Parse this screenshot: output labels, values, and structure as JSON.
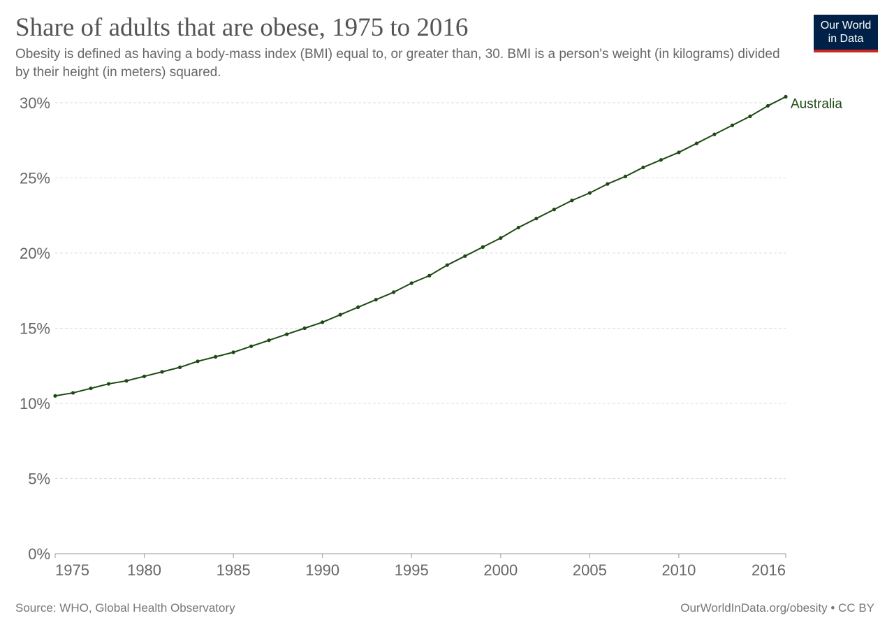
{
  "header": {
    "title": "Share of adults that are obese, 1975 to 2016",
    "subtitle": "Obesity is defined as having a body-mass index (BMI) equal to, or greater than, 30. BMI is a person's weight (in kilograms) divided by their height (in meters) squared."
  },
  "logo": {
    "line1": "Our World",
    "line2": "in Data",
    "background_color": "#002147",
    "accent_color": "#ce261e"
  },
  "footer": {
    "source": "Source: WHO, Global Health Observatory",
    "link": "OurWorldInData.org/obesity • CC BY"
  },
  "chart_data": {
    "type": "line",
    "title": "Share of adults that are obese, 1975 to 2016",
    "xlabel": "",
    "ylabel": "",
    "xlim": [
      1975,
      2016
    ],
    "ylim": [
      0,
      30
    ],
    "x_ticks": [
      1975,
      1980,
      1985,
      1990,
      1995,
      2000,
      2005,
      2010,
      2016
    ],
    "y_ticks": [
      0,
      5,
      10,
      15,
      20,
      25,
      30
    ],
    "y_tick_labels": [
      "0%",
      "5%",
      "10%",
      "15%",
      "20%",
      "25%",
      "30%"
    ],
    "grid": "horizontal dashed",
    "legend": "inline label at line end",
    "x": [
      1975,
      1976,
      1977,
      1978,
      1979,
      1980,
      1981,
      1982,
      1983,
      1984,
      1985,
      1986,
      1987,
      1988,
      1989,
      1990,
      1991,
      1992,
      1993,
      1994,
      1995,
      1996,
      1997,
      1998,
      1999,
      2000,
      2001,
      2002,
      2003,
      2004,
      2005,
      2006,
      2007,
      2008,
      2009,
      2010,
      2011,
      2012,
      2013,
      2014,
      2015,
      2016
    ],
    "series": [
      {
        "name": "Australia",
        "color": "#1d4a14",
        "values": [
          10.5,
          10.7,
          11.0,
          11.3,
          11.5,
          11.8,
          12.1,
          12.4,
          12.8,
          13.1,
          13.4,
          13.8,
          14.2,
          14.6,
          15.0,
          15.4,
          15.9,
          16.4,
          16.9,
          17.4,
          18.0,
          18.5,
          19.2,
          19.8,
          20.4,
          21.0,
          21.7,
          22.3,
          22.9,
          23.5,
          24.0,
          24.6,
          25.1,
          25.7,
          26.2,
          26.7,
          27.3,
          27.9,
          28.5,
          29.1,
          29.8,
          30.4
        ]
      }
    ]
  }
}
